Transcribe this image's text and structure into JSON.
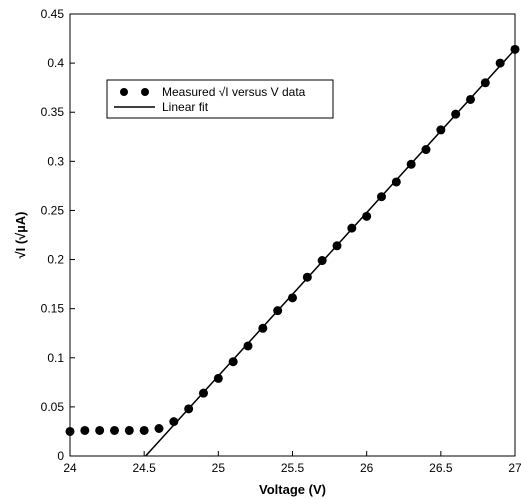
{
  "chart_data": {
    "type": "scatter",
    "xlabel": "Voltage (V)",
    "ylabel": "√I (√µA)",
    "xlim": [
      24,
      27
    ],
    "ylim": [
      0,
      0.45
    ],
    "x_ticks": [
      "24",
      "24.5",
      "25",
      "25.5",
      "26",
      "26.5",
      "27"
    ],
    "y_ticks": [
      "0",
      "0.05",
      "0.1",
      "0.15",
      "0.2",
      "0.25",
      "0.3",
      "0.35",
      "0.4",
      "0.45"
    ],
    "grid": false,
    "legend_position": "top-left",
    "series": [
      {
        "name": "Measured √I versus V data",
        "kind": "scatter",
        "color": "#000000",
        "x": [
          24.0,
          24.1,
          24.2,
          24.3,
          24.4,
          24.5,
          24.6,
          24.7,
          24.8,
          24.9,
          25.0,
          25.1,
          25.2,
          25.3,
          25.4,
          25.5,
          25.6,
          25.7,
          25.8,
          25.9,
          26.0,
          26.1,
          26.2,
          26.3,
          26.4,
          26.5,
          26.6,
          26.7,
          26.8,
          26.9,
          27.0
        ],
        "y": [
          0.025,
          0.026,
          0.026,
          0.026,
          0.026,
          0.026,
          0.028,
          0.035,
          0.048,
          0.064,
          0.079,
          0.096,
          0.112,
          0.13,
          0.148,
          0.161,
          0.182,
          0.199,
          0.214,
          0.232,
          0.244,
          0.264,
          0.279,
          0.297,
          0.312,
          0.332,
          0.348,
          0.363,
          0.38,
          0.4,
          0.414
        ]
      },
      {
        "name": "Linear fit",
        "kind": "line",
        "color": "#000000",
        "x": [
          24.51,
          27.0
        ],
        "y": [
          0.0,
          0.414
        ]
      }
    ]
  }
}
